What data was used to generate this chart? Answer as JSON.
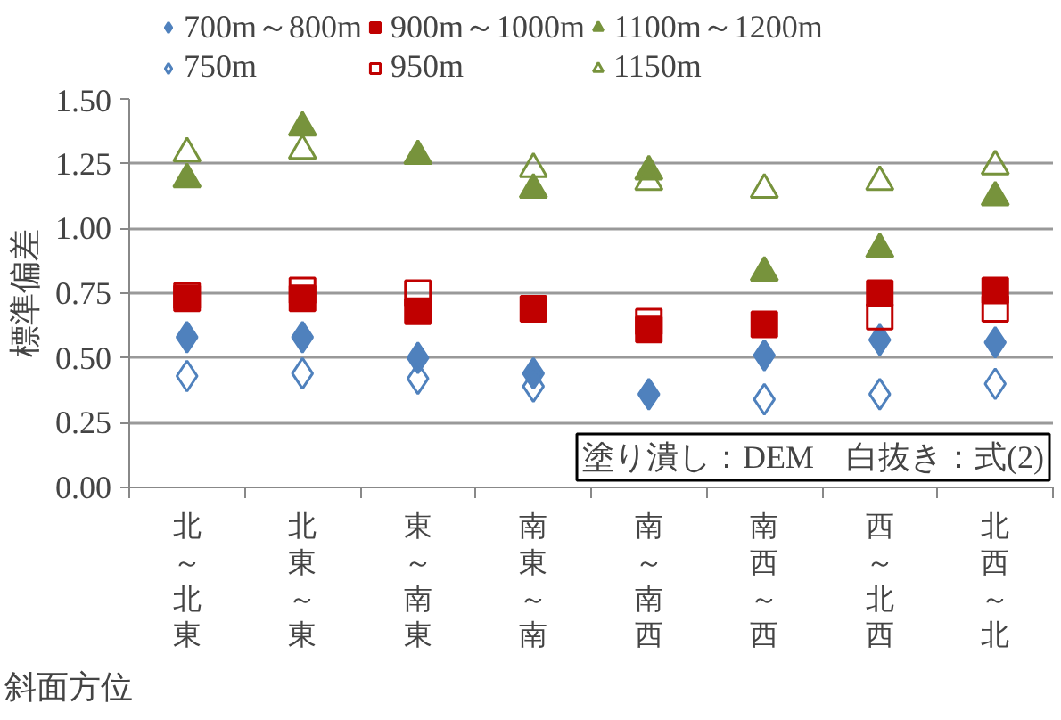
{
  "chart_data": {
    "type": "scatter",
    "xlabel": "斜面方位",
    "ylabel": "標準偏差",
    "categories": [
      "北～北東",
      "北東～東",
      "東～南東",
      "南東～南",
      "南～南西",
      "南西～西",
      "西～北西",
      "北西～北"
    ],
    "ylim": [
      0,
      1.5
    ],
    "yticks": [
      {
        "value": 0,
        "label": "0.00"
      },
      {
        "value": 0.25,
        "label": "0.25"
      },
      {
        "value": 0.5,
        "label": "0.50"
      },
      {
        "value": 0.75,
        "label": "0.75"
      },
      {
        "value": 1,
        "label": "1.00"
      },
      {
        "value": 1.25,
        "label": "1.25"
      },
      {
        "value": 1.5,
        "label": "1.50"
      }
    ],
    "grid": "y",
    "legend": "top",
    "annotations": [
      "塗り潰し：DEM　白抜き：式(2)"
    ],
    "series": [
      {
        "name": "700m～800m",
        "color": "#4f81bd",
        "marker": "diamond",
        "values": [
          0.58,
          0.58,
          0.5,
          0.44,
          0.36,
          0.51,
          0.57,
          0.56
        ]
      },
      {
        "name": "900m～1000m",
        "color": "#c00000",
        "marker": "square",
        "values": [
          0.73,
          0.73,
          0.68,
          0.69,
          0.61,
          0.63,
          0.75,
          0.76
        ]
      },
      {
        "name": "1100m～1200m",
        "color": "#77933c",
        "marker": "triangle",
        "values": [
          1.19,
          1.39,
          1.28,
          1.15,
          1.22,
          0.83,
          0.92,
          1.12
        ]
      },
      {
        "name": "750m",
        "color": "#4f81bd",
        "marker": "diamond_open",
        "values": [
          0.43,
          0.44,
          0.42,
          0.39,
          null,
          0.34,
          0.36,
          0.4
        ]
      },
      {
        "name": "950m",
        "color": "#c00000",
        "marker": "square_open",
        "values": [
          0.74,
          0.76,
          0.75,
          null,
          0.64,
          null,
          0.66,
          0.69
        ]
      },
      {
        "name": "1150m",
        "color": "#77933c",
        "marker": "triangle_open",
        "values": [
          1.29,
          1.3,
          null,
          1.23,
          1.18,
          1.15,
          1.18,
          1.24
        ]
      }
    ]
  }
}
